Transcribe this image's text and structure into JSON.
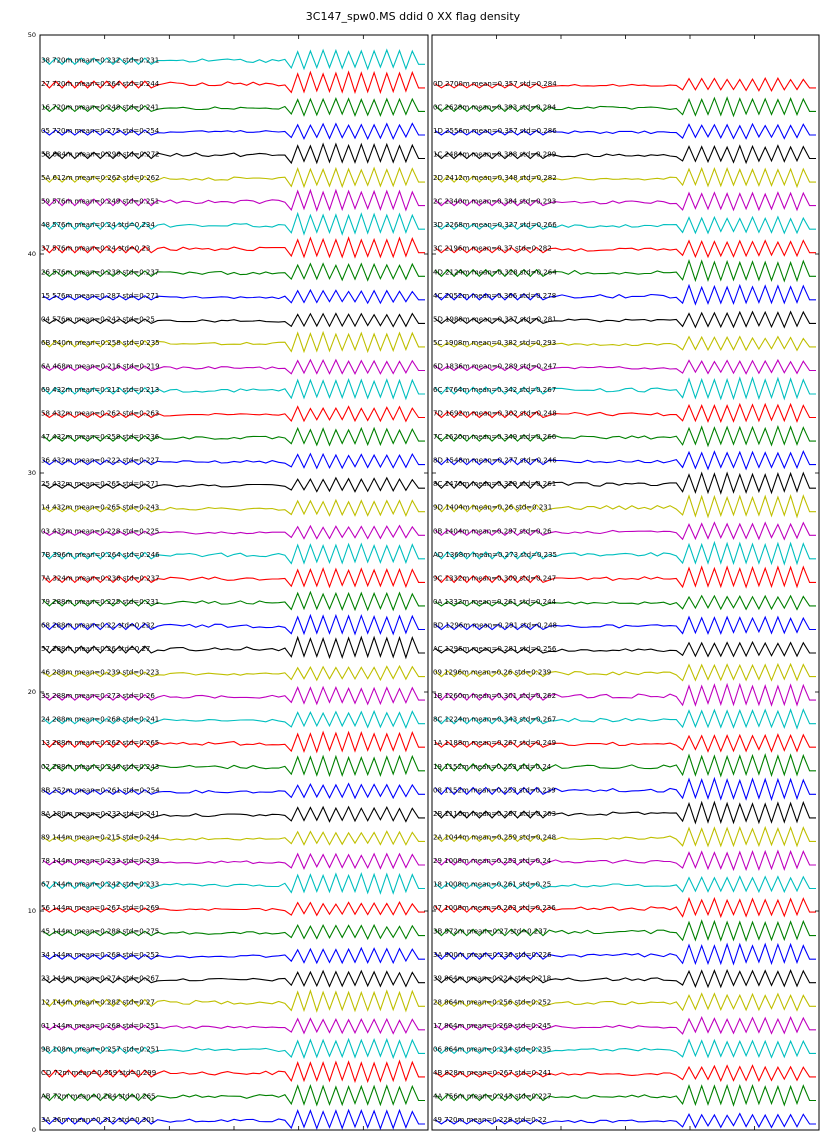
{
  "chart_data": {
    "type": "line",
    "title": "3C147_spw0.MS ddid 0 XX flag density",
    "ylim": [
      0,
      50
    ],
    "yticks": [
      "0",
      "10",
      "20",
      "30",
      "40",
      "50"
    ],
    "colors": [
      "#0000ff",
      "#008000",
      "#ff0000",
      "#00bfbf",
      "#bf00bf",
      "#bfbf00",
      "#000000"
    ],
    "panels": [
      {
        "series": [
          {
            "label": "3A 36m mean=0.312 std=0.301"
          },
          {
            "label": "AB 72m mean=0.284 std=0.265"
          },
          {
            "label": "CD 72m mean=0.359 std=0.299"
          },
          {
            "label": "9B 108m mean=0.257 std=0.251"
          },
          {
            "label": "01 144m mean=0.268 std=0.251"
          },
          {
            "label": "12 144m mean=0.282 std=0.27"
          },
          {
            "label": "23 144m mean=0.274 std=0.267"
          },
          {
            "label": "34 144m mean=0.268 std=0.252"
          },
          {
            "label": "45 144m mean=0.288 std=0.275"
          },
          {
            "label": "56 144m mean=0.267 std=0.269"
          },
          {
            "label": "67 144m mean=0.242 std=0.233"
          },
          {
            "label": "78 144m mean=0.233 std=0.239"
          },
          {
            "label": "89 144m mean=0.215 std=0.244"
          },
          {
            "label": "8A 180m mean=0.232 std=0.241"
          },
          {
            "label": "8B 252m mean=0.261 std=0.254"
          },
          {
            "label": "02 288m mean=0.246 std=0.243"
          },
          {
            "label": "13 288m mean=0.262 std=0.265"
          },
          {
            "label": "24 288m mean=0.268 std=0.241"
          },
          {
            "label": "35 288m mean=0.273 std=0.26"
          },
          {
            "label": "46 288m mean=0.239 std=0.223"
          },
          {
            "label": "57 288m mean=0.26 std=0.27"
          },
          {
            "label": "68 288m mean=0.22 std=0.232"
          },
          {
            "label": "79 288m mean=0.225 std=0.231"
          },
          {
            "label": "7A 324m mean=0.236 std=0.237"
          },
          {
            "label": "7B 396m mean=0.264 std=0.246"
          },
          {
            "label": "03 432m mean=0.228 std=0.225"
          },
          {
            "label": "14 432m mean=0.265 std=0.243"
          },
          {
            "label": "25 432m mean=0.265 std=0.271"
          },
          {
            "label": "36 432m mean=0.222 std=0.227"
          },
          {
            "label": "47 432m mean=0.258 std=0.236"
          },
          {
            "label": "58 432m mean=0.262 std=0.263"
          },
          {
            "label": "69 432m mean=0.211 std=0.213"
          },
          {
            "label": "6A 468m mean=0.216 std=0.219"
          },
          {
            "label": "6B 540m mean=0.258 std=0.235"
          },
          {
            "label": "04 576m mean=0.242 std=0.25"
          },
          {
            "label": "15 576m mean=0.287 std=0.271"
          },
          {
            "label": "26 576m mean=0.238 std=0.237"
          },
          {
            "label": "37 576m mean=0.24 std=0.23"
          },
          {
            "label": "48 576m mean=0.24 std=0.234"
          },
          {
            "label": "59 576m mean=0.249 std=0.251"
          },
          {
            "label": "5A 612m mean=0.262 std=0.262"
          },
          {
            "label": "5B 684m mean=0.296 std=0.272"
          },
          {
            "label": "05 720m mean=0.275 std=0.254"
          },
          {
            "label": "16 720m mean=0.248 std=0.241"
          },
          {
            "label": "27 720m mean=0.264 std=0.244"
          },
          {
            "label": "38 720m mean=0.232 std=0.231"
          }
        ]
      },
      {
        "series": [
          {
            "label": "49 720m mean=0.228 std=0.22"
          },
          {
            "label": "4A 756m mean=0.243 std=0.227"
          },
          {
            "label": "4B 828m mean=0.267 std=0.241"
          },
          {
            "label": "06 864m mean=0.234 std=0.235"
          },
          {
            "label": "17 864m mean=0.269 std=0.245"
          },
          {
            "label": "28 864m mean=0.256 std=0.252"
          },
          {
            "label": "39 864m mean=0.224 std=0.218"
          },
          {
            "label": "3A 900m mean=0.236 std=0.226"
          },
          {
            "label": "3B 972m mean=0.27 std=0.237"
          },
          {
            "label": "07 1008m mean=0.263 std=0.236"
          },
          {
            "label": "18 1008m mean=0.261 std=0.25"
          },
          {
            "label": "29 1008m mean=0.253 std=0.24"
          },
          {
            "label": "2A 1044m mean=0.259 std=0.248"
          },
          {
            "label": "2B 1116m mean=0.287 std=0.263"
          },
          {
            "label": "08 1152m mean=0.253 std=0.239"
          },
          {
            "label": "19 1152m mean=0.253 std=0.24"
          },
          {
            "label": "1A 1188m mean=0.267 std=0.249"
          },
          {
            "label": "8C 1224m mean=0.343 std=0.267"
          },
          {
            "label": "1B 1260m mean=0.301 std=0.262"
          },
          {
            "label": "09 1296m mean=0.26 std=0.239"
          },
          {
            "label": "AC 1296m mean=0.281 std=0.256"
          },
          {
            "label": "BD 1296m mean=0.291 std=0.248"
          },
          {
            "label": "0A 1332m mean=0.261 std=0.244"
          },
          {
            "label": "9C 1332m mean=0.309 std=0.247"
          },
          {
            "label": "AD 1368m mean=0.273 std=0.235"
          },
          {
            "label": "0B 1404m mean=0.297 std=0.26"
          },
          {
            "label": "9D 1404m mean=0.26 std=0.231"
          },
          {
            "label": "8C 1476m mean=0.329 std=0.261"
          },
          {
            "label": "8D 1548m mean=0.277 std=0.246"
          },
          {
            "label": "7C 1620m mean=0.349 std=0.266"
          },
          {
            "label": "7D 1692m mean=0.302 std=0.248"
          },
          {
            "label": "6C 1764m mean=0.342 std=0.267"
          },
          {
            "label": "6D 1836m mean=0.289 std=0.247"
          },
          {
            "label": "5C 1908m mean=0.382 std=0.293"
          },
          {
            "label": "5D 1980m mean=0.337 std=0.281"
          },
          {
            "label": "4C 2052m mean=0.366 std=0.278"
          },
          {
            "label": "4D 2124m mean=0.328 std=0.264"
          },
          {
            "label": "3C 2196m mean=0.37 std=0.282"
          },
          {
            "label": "3D 2268m mean=0.327 std=0.266"
          },
          {
            "label": "2C 2340m mean=0.384 std=0.293"
          },
          {
            "label": "2D 2412m mean=0.348 std=0.282"
          },
          {
            "label": "1C 2484m mean=0.388 std=0.299"
          },
          {
            "label": "1D 2556m mean=0.357 std=0.286"
          },
          {
            "label": "0C 2628m mean=0.393 std=0.294"
          },
          {
            "label": "0D 2700m mean=0.357 std=0.284"
          }
        ]
      }
    ]
  }
}
